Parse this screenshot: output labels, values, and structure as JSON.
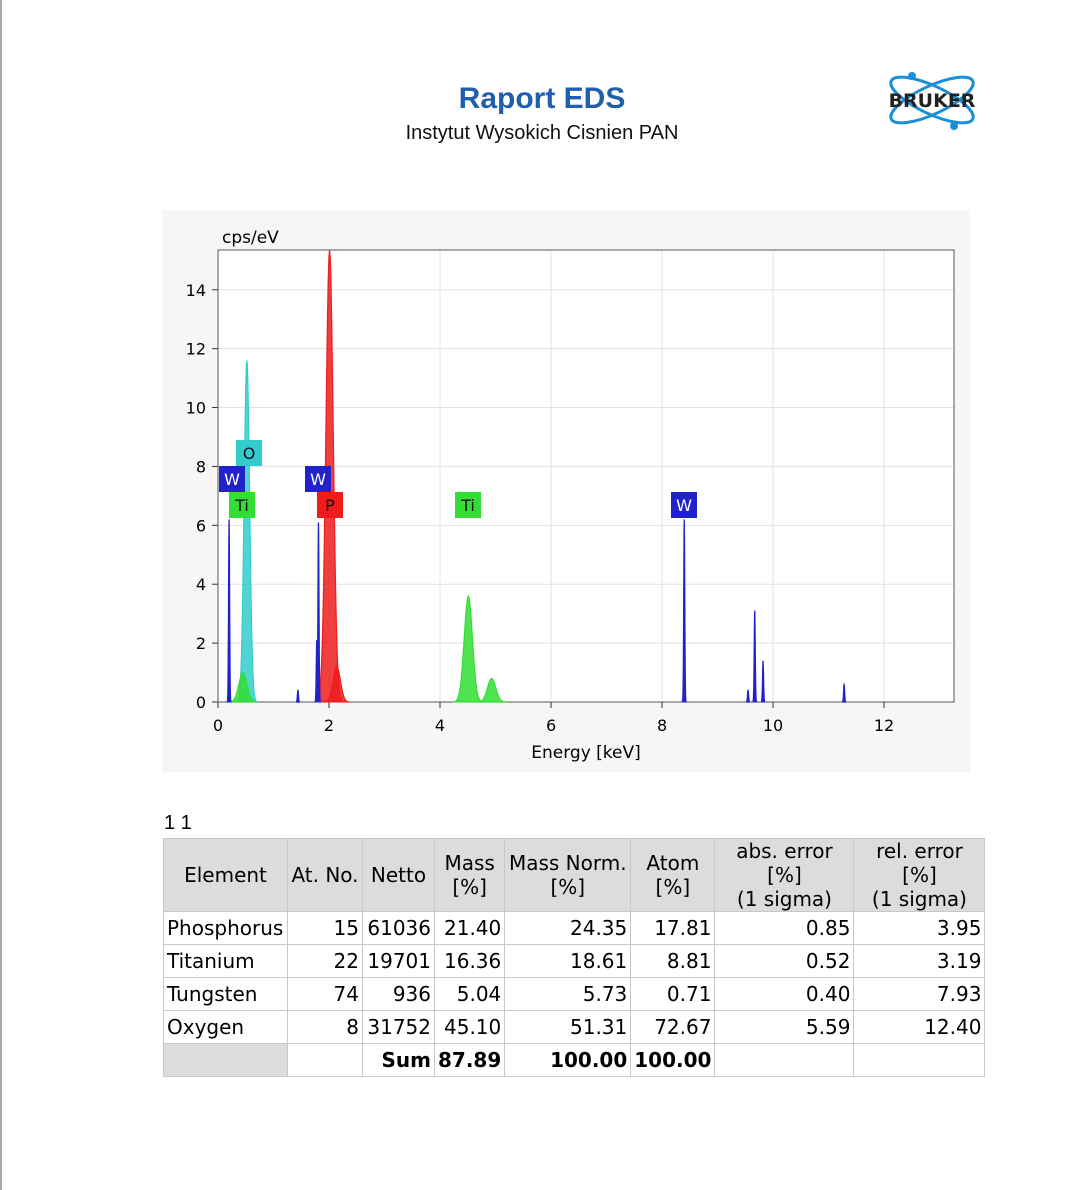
{
  "header": {
    "title": "Raport EDS",
    "subtitle": "Instytut Wysokich Cisnien PAN",
    "logo": "BRUKER"
  },
  "chart_data": {
    "type": "spectrum",
    "y_label": "cps/eV",
    "x_label": "Energy [keV]",
    "xlim": [
      0,
      13.26
    ],
    "ylim": [
      0,
      15.35
    ],
    "xticks": [
      0,
      2,
      4,
      6,
      8,
      10,
      12
    ],
    "yticks": [
      0,
      2,
      4,
      6,
      8,
      10,
      12,
      14
    ],
    "grid": true,
    "series": [
      {
        "name": "O",
        "color": "#33cccc",
        "x": [
          0.52
        ],
        "values": [
          11.6
        ]
      },
      {
        "name": "P",
        "color": "#ee1c1c",
        "x": [
          2.01,
          2.14
        ],
        "values": [
          15.35,
          1.2
        ]
      },
      {
        "name": "Ti",
        "color": "#33dd33",
        "x": [
          0.45,
          4.51,
          4.93
        ],
        "values": [
          1.0,
          3.6,
          0.8
        ]
      },
      {
        "name": "W",
        "color": "#2222cc",
        "x": [
          0.2,
          1.44,
          1.78,
          1.81,
          8.4,
          9.55,
          9.67,
          9.82,
          11.28
        ],
        "values": [
          6.2,
          0.4,
          2.1,
          6.1,
          6.2,
          0.4,
          3.1,
          1.4,
          0.6
        ]
      }
    ]
  },
  "table": {
    "caption": "1 1",
    "columns": [
      "Element",
      "At. No.",
      "Netto",
      "Mass\n[%]",
      "Mass Norm.\n[%]",
      "Atom\n[%]",
      "abs. error [%]\n(1 sigma)",
      "rel. error [%]\n(1 sigma)"
    ],
    "rows": [
      [
        "Phosphorus",
        "15",
        "61036",
        "21.40",
        "24.35",
        "17.81",
        "0.85",
        "3.95"
      ],
      [
        "Titanium",
        "22",
        "19701",
        "16.36",
        "18.61",
        "8.81",
        "0.52",
        "3.19"
      ],
      [
        "Tungsten",
        "74",
        "936",
        "5.04",
        "5.73",
        "0.71",
        "0.40",
        "7.93"
      ],
      [
        "Oxygen",
        "8",
        "31752",
        "45.10",
        "51.31",
        "72.67",
        "5.59",
        "12.40"
      ]
    ],
    "sum": {
      "label": "Sum",
      "mass": "87.89",
      "mass_norm": "100.00",
      "atom": "100.00"
    }
  }
}
